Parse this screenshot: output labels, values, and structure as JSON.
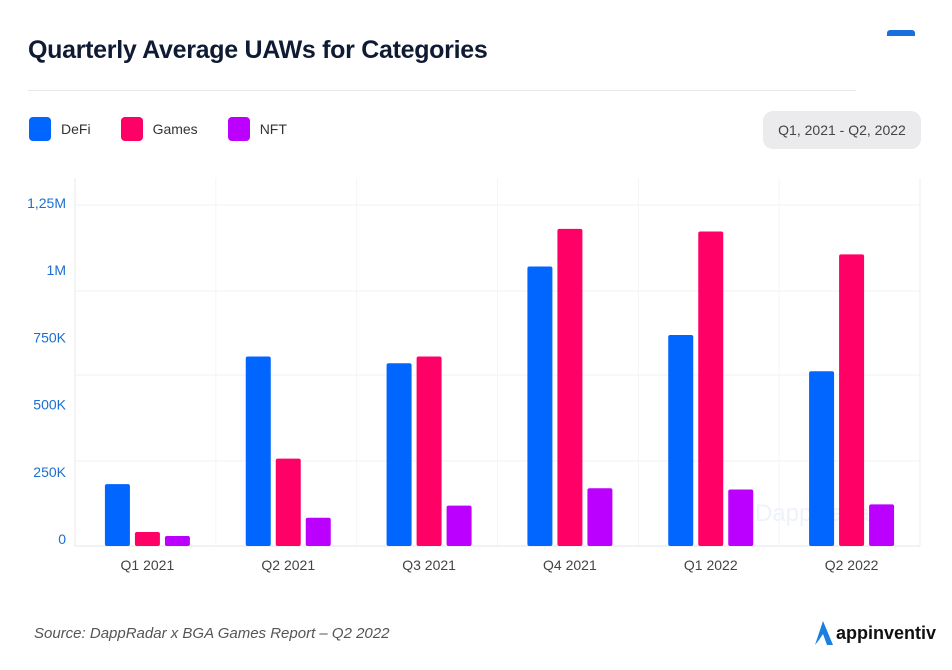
{
  "colors": {
    "DeFi": "#0066ff",
    "Games": "#ff0066",
    "NFT": "#bb00ff",
    "axis_label": "#1a6fd1",
    "title": "#0f1b33"
  },
  "header": {
    "date_range": "Q1, 2021 - Q2, 2022"
  },
  "footer": {
    "source": "Source: DappRadar x BGA Games Report – Q2 2022",
    "logo_text": "appinventiv"
  },
  "watermark": "DappRadar",
  "chart_data": {
    "type": "bar",
    "title": "Quarterly Average UAWs for Categories",
    "xlabel": "",
    "ylabel": "",
    "categories": [
      "Q1 2021",
      "Q2 2021",
      "Q3 2021",
      "Q4 2021",
      "Q1 2022",
      "Q2 2022"
    ],
    "series": [
      {
        "name": "DeFi",
        "values": [
          230000,
          705000,
          680000,
          1040000,
          785000,
          650000
        ]
      },
      {
        "name": "Games",
        "values": [
          52000,
          325000,
          705000,
          1180000,
          1170000,
          1085000
        ]
      },
      {
        "name": "NFT",
        "values": [
          37000,
          105000,
          150000,
          215000,
          210000,
          155000
        ]
      }
    ],
    "yticks": [
      {
        "value": 0,
        "label": "0"
      },
      {
        "value": 250000,
        "label": "250K"
      },
      {
        "value": 500000,
        "label": "500K"
      },
      {
        "value": 750000,
        "label": "750K"
      },
      {
        "value": 1000000,
        "label": "1M"
      },
      {
        "value": 1250000,
        "label": "1,25M"
      }
    ],
    "ylim": [
      0,
      1250000
    ],
    "grid": true,
    "legend": "top-left"
  }
}
